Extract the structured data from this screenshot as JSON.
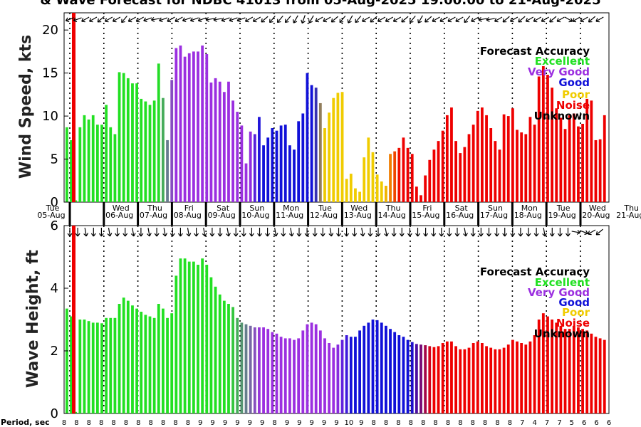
{
  "chart_data": {
    "title": "& Wave Forecast for NDBC 41013 from 05-Aug-2025 19:00:00 to 21-Aug-2025",
    "type": "bar",
    "days": [
      "Tue",
      "Wed",
      "Thu",
      "Fri",
      "Sat",
      "Sun",
      "Mon",
      "Tue",
      "Wed",
      "Thu",
      "Fri",
      "Sat",
      "Sun",
      "Mon",
      "Tue",
      "Wed",
      "Thu"
    ],
    "dates": [
      "05-Aug",
      "06-Aug",
      "07-Aug",
      "08-Aug",
      "09-Aug",
      "10-Aug",
      "11-Aug",
      "12-Aug",
      "13-Aug",
      "14-Aug",
      "15-Aug",
      "16-Aug",
      "17-Aug",
      "18-Aug",
      "19-Aug",
      "20-Aug",
      "21-Aug"
    ],
    "colors": {
      "excellent": "#22e022",
      "very_good": "#9b2fe0",
      "good": "#1010d8",
      "poor": "#f0cc00",
      "noise": "#ee0000",
      "unknown": "#000000",
      "now_line": "#ee0000"
    },
    "wind": {
      "ylabel": "Wind Speed, kts",
      "ylim": [
        0,
        22
      ],
      "ticks": [
        0,
        5,
        10,
        15,
        20
      ],
      "values": [
        8.7,
        7.2,
        0.2,
        8.7,
        10.1,
        9.6,
        10.1,
        9.0,
        9.0,
        11.3,
        8.7,
        7.9,
        15.1,
        15.0,
        14.4,
        13.8,
        13.8,
        12.0,
        11.7,
        11.3,
        11.8,
        16.1,
        12.1,
        7.2,
        14.2,
        17.9,
        18.2,
        16.9,
        17.3,
        17.5,
        17.5,
        18.2,
        17.2,
        13.9,
        14.4,
        14.0,
        12.8,
        14.0,
        11.8,
        10.5,
        8.9,
        4.5,
        8.2,
        7.9,
        9.9,
        6.6,
        7.5,
        8.6,
        8.3,
        8.9,
        9.0,
        6.6,
        6.1,
        9.4,
        10.3,
        15.0,
        13.6,
        13.3,
        11.5,
        8.6,
        10.4,
        12.1,
        12.7,
        12.8,
        2.7,
        3.3,
        1.6,
        1.2,
        5.2,
        7.5,
        5.8,
        3.2,
        2.4,
        1.9,
        5.6,
        5.9,
        6.3,
        7.5,
        6.3,
        5.6,
        1.8,
        0.8,
        3.1,
        4.9,
        6.1,
        7.1,
        8.3,
        10.1,
        11.0,
        7.1,
        5.7,
        6.4,
        7.9,
        9.0,
        10.6,
        11.0,
        10.1,
        8.6,
        7.1,
        6.1,
        10.2,
        10.0,
        10.9,
        8.4,
        8.1,
        7.9,
        9.9,
        9.0,
        14.6,
        15.8,
        14.8,
        13.3,
        10.9,
        9.8,
        8.5,
        10.1,
        10.3,
        8.8,
        9.1,
        12.0,
        11.8,
        7.2,
        7.3,
        10.1
      ],
      "direction_arrows_deg": [
        160,
        160,
        150,
        150,
        140,
        150,
        150,
        130,
        150,
        150,
        160,
        170,
        160,
        150,
        150,
        160,
        160,
        160,
        170,
        170,
        160,
        160,
        160,
        150,
        150,
        140,
        130,
        130,
        130,
        120,
        110,
        120,
        150,
        150,
        140,
        130,
        120,
        130,
        150,
        140,
        150,
        150,
        150,
        140,
        130,
        120,
        140,
        150,
        150,
        150,
        150,
        130,
        150,
        170,
        170,
        150,
        140,
        150,
        140,
        150,
        150,
        150,
        140,
        150,
        30,
        150,
        150,
        140,
        150
      ],
      "legend": {
        "title": "Forecast Accuracy",
        "items": [
          "Excellent",
          "Very Good",
          "Good",
          "Poor",
          "Noise",
          "Unknown"
        ]
      }
    },
    "wave": {
      "ylabel": "Wave Height, ft",
      "ylim": [
        0,
        6
      ],
      "ticks": [
        0,
        2,
        4,
        6
      ],
      "values": [
        3.35,
        3.1,
        0.05,
        3.0,
        3.0,
        2.95,
        2.9,
        2.9,
        2.88,
        3.05,
        3.05,
        3.05,
        3.5,
        3.7,
        3.6,
        3.45,
        3.35,
        3.25,
        3.15,
        3.1,
        3.05,
        3.5,
        3.35,
        3.05,
        3.2,
        4.4,
        4.95,
        4.95,
        4.85,
        4.85,
        4.75,
        4.95,
        4.75,
        4.35,
        4.05,
        3.8,
        3.6,
        3.5,
        3.4,
        3.05,
        2.9,
        2.85,
        2.8,
        2.75,
        2.75,
        2.75,
        2.7,
        2.6,
        2.55,
        2.45,
        2.4,
        2.4,
        2.35,
        2.4,
        2.65,
        2.85,
        2.9,
        2.85,
        2.65,
        2.4,
        2.25,
        2.1,
        2.2,
        2.35,
        2.5,
        2.45,
        2.45,
        2.65,
        2.8,
        2.9,
        3.0,
        2.98,
        2.9,
        2.8,
        2.7,
        2.6,
        2.5,
        2.45,
        2.35,
        2.28,
        2.22,
        2.2,
        2.18,
        2.15,
        2.12,
        2.15,
        2.25,
        2.3,
        2.3,
        2.15,
        2.05,
        2.05,
        2.1,
        2.25,
        2.3,
        2.25,
        2.15,
        2.1,
        2.05,
        2.05,
        2.1,
        2.2,
        2.35,
        2.3,
        2.25,
        2.2,
        2.3,
        2.5,
        3.0,
        3.2,
        3.1,
        3.0,
        2.9,
        2.8,
        2.7,
        2.7,
        2.8,
        2.75,
        2.7,
        2.65,
        2.55,
        2.45,
        2.4,
        2.35
      ],
      "direction_arrows_deg": [
        90,
        90,
        80,
        90,
        90,
        80,
        90,
        90,
        80,
        90,
        80,
        90,
        80,
        90,
        90,
        80,
        90,
        80,
        90,
        90,
        80,
        90,
        90,
        90,
        90,
        90,
        80,
        90,
        80,
        90,
        90,
        90,
        90,
        80,
        90,
        90,
        90,
        80,
        90,
        90,
        80,
        90,
        90,
        90,
        90,
        90,
        90,
        90,
        90,
        90,
        80,
        90,
        90,
        90,
        90,
        90,
        90,
        90,
        90,
        90,
        80,
        90,
        90,
        90,
        10,
        20,
        150,
        140
      ],
      "legend": {
        "title": "Forecast Accuracy",
        "items": [
          "Excellent",
          "Very Good",
          "Good",
          "Poor",
          "Noise",
          "Unknown"
        ]
      }
    },
    "period": {
      "label": "Period, sec",
      "values": [
        "8",
        "8",
        "8",
        "8",
        "8",
        "8",
        "8",
        "8",
        "8",
        "8",
        "8",
        "9",
        "9",
        "9",
        "9",
        "9",
        "9",
        "8",
        "9",
        "9",
        "9",
        "9",
        "9",
        "10",
        "9",
        "8",
        "8",
        "8",
        "8",
        "8",
        "8",
        "8",
        "8",
        "8",
        "8",
        "8",
        "8",
        "7",
        "4",
        "7",
        "7",
        "5",
        "6",
        "6",
        "6"
      ]
    }
  }
}
